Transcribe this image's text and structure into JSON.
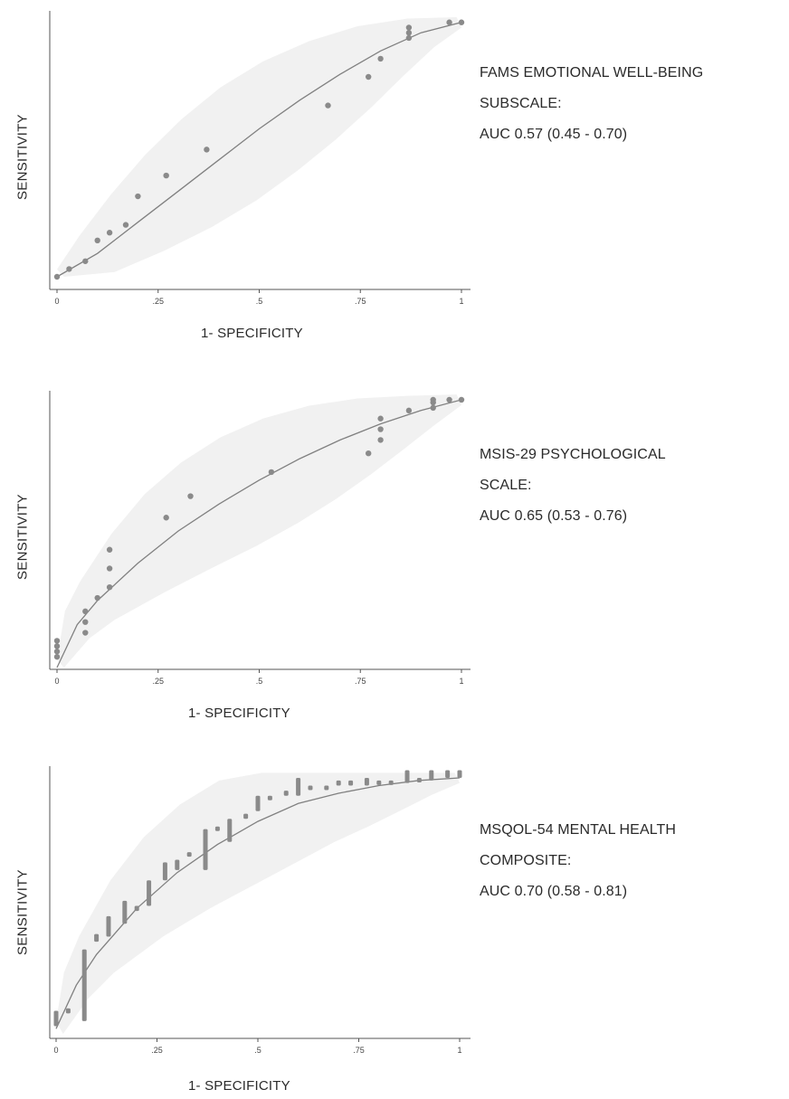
{
  "chart_data": [
    {
      "type": "scatter",
      "xlabel": "1- SPECIFICITY",
      "ylabel": "SENSITIVITY",
      "xlim": [
        0,
        1
      ],
      "ylim": [
        0,
        1
      ],
      "xticks": [
        "0",
        ".25",
        ".5",
        ".75",
        "1"
      ],
      "caption": [
        "FAMS EMOTIONAL WELL-BEING",
        "SUBSCALE:",
        "AUC 0.57 (0.45 - 0.70)"
      ],
      "colors": {
        "points": "#8a8a8a",
        "curve": "#808080",
        "band": "#f1f1f1"
      },
      "series": [
        {
          "x": [
            0,
            0.03,
            0.07,
            0.1,
            0.13,
            0.17,
            0.2,
            0.27,
            0.37,
            0.67,
            0.77,
            0.8,
            0.87,
            0.87,
            0.87,
            0.97,
            1.0
          ],
          "y": [
            0,
            0.03,
            0.06,
            0.14,
            0.17,
            0.2,
            0.31,
            0.39,
            0.49,
            0.66,
            0.77,
            0.84,
            0.92,
            0.94,
            0.96,
            0.98,
            0.98
          ]
        }
      ],
      "curve": {
        "x": [
          0,
          0.1,
          0.2,
          0.3,
          0.4,
          0.5,
          0.6,
          0.7,
          0.8,
          0.9,
          1.0
        ],
        "y": [
          0.0,
          0.09,
          0.21,
          0.33,
          0.45,
          0.57,
          0.68,
          0.78,
          0.87,
          0.94,
          0.98
        ]
      }
    },
    {
      "type": "scatter",
      "xlabel": "1- SPECIFICITY",
      "ylabel": "SENSITIVITY",
      "xlim": [
        0,
        1
      ],
      "ylim": [
        0,
        1
      ],
      "xticks": [
        "0",
        ".25",
        ".5",
        ".75",
        "1"
      ],
      "caption": [
        "MSIS-29 PSYCHOLOGICAL",
        "SCALE:",
        "AUC 0.65 (0.53 - 0.76)"
      ],
      "colors": {
        "points": "#8a8a8a",
        "curve": "#808080",
        "band": "#f1f1f1"
      },
      "series": [
        {
          "x": [
            0,
            0,
            0,
            0,
            0.07,
            0.07,
            0.07,
            0.1,
            0.13,
            0.13,
            0.13,
            0.27,
            0.33,
            0.53,
            0.77,
            0.8,
            0.8,
            0.8,
            0.87,
            0.93,
            0.93,
            0.93,
            0.97,
            1.0
          ],
          "y": [
            0.04,
            0.06,
            0.08,
            0.1,
            0.13,
            0.17,
            0.21,
            0.26,
            0.3,
            0.37,
            0.44,
            0.56,
            0.64,
            0.73,
            0.8,
            0.85,
            0.89,
            0.93,
            0.96,
            0.97,
            0.99,
            1.0,
            1.0,
            1.0
          ]
        }
      ],
      "curve": {
        "x": [
          0,
          0.05,
          0.1,
          0.2,
          0.3,
          0.4,
          0.5,
          0.6,
          0.7,
          0.8,
          0.9,
          1.0
        ],
        "y": [
          0.0,
          0.16,
          0.25,
          0.39,
          0.51,
          0.61,
          0.7,
          0.78,
          0.85,
          0.91,
          0.96,
          1.0
        ]
      }
    },
    {
      "type": "scatter",
      "xlabel": "1- SPECIFICITY",
      "ylabel": "SENSITIVITY",
      "xlim": [
        0,
        1
      ],
      "ylim": [
        0,
        1
      ],
      "xticks": [
        "0",
        ".25",
        ".5",
        ".75",
        "1"
      ],
      "caption": [
        "MSQOL-54 MENTAL HEALTH",
        "COMPOSITE:",
        "AUC 0.70 (0.58 - 0.81)"
      ],
      "colors": {
        "points": "#8a8a8a",
        "curve": "#808080",
        "band": "#f1f1f1"
      },
      "series": [
        {
          "x": [
            0,
            0.03,
            0.07,
            0.1,
            0.13,
            0.17,
            0.2,
            0.23,
            0.27,
            0.3,
            0.33,
            0.37,
            0.4,
            0.43,
            0.47,
            0.5,
            0.53,
            0.57,
            0.6,
            0.63,
            0.67,
            0.7,
            0.73,
            0.77,
            0.8,
            0.83,
            0.87,
            0.9,
            0.93,
            0.97,
            1.0
          ],
          "y_low": [
            0.03,
            0.08,
            0.05,
            0.36,
            0.38,
            0.43,
            0.48,
            0.5,
            0.6,
            0.64,
            0.7,
            0.64,
            0.8,
            0.75,
            0.84,
            0.87,
            0.92,
            0.93,
            0.93,
            0.96,
            0.96,
            0.97,
            0.97,
            0.97,
            0.98,
            0.98,
            0.98,
            0.99,
            0.99,
            1.0,
            1.0
          ],
          "y_high": [
            0.09,
            0.1,
            0.33,
            0.39,
            0.46,
            0.52,
            0.5,
            0.6,
            0.67,
            0.68,
            0.71,
            0.8,
            0.81,
            0.84,
            0.86,
            0.93,
            0.93,
            0.95,
            1.0,
            0.97,
            0.97,
            0.99,
            0.99,
            1.0,
            0.99,
            0.99,
            1.03,
            1.0,
            1.03,
            1.03,
            1.03
          ]
        }
      ],
      "curve": {
        "x": [
          0,
          0.05,
          0.1,
          0.2,
          0.3,
          0.4,
          0.5,
          0.6,
          0.7,
          0.8,
          0.9,
          1.0
        ],
        "y": [
          0.02,
          0.19,
          0.31,
          0.49,
          0.63,
          0.74,
          0.83,
          0.9,
          0.94,
          0.97,
          0.99,
          1.0
        ]
      }
    }
  ]
}
